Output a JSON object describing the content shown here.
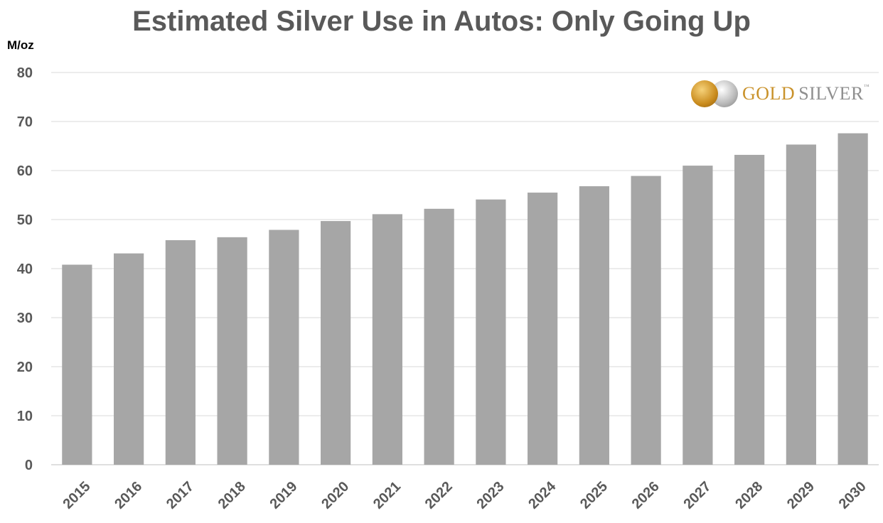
{
  "chart_data": {
    "type": "bar",
    "title": "Estimated Silver Use in Autos: Only Going Up",
    "ylabel": "M/oz",
    "xlabel": "",
    "categories": [
      "2015",
      "2016",
      "2017",
      "2018",
      "2019",
      "2020",
      "2021",
      "2022",
      "2023",
      "2024",
      "2025",
      "2026",
      "2027",
      "2028",
      "2029",
      "2030"
    ],
    "values": [
      40.8,
      43.1,
      45.8,
      46.4,
      47.9,
      49.7,
      51.1,
      52.2,
      54.1,
      55.5,
      56.8,
      58.9,
      61.0,
      63.2,
      65.3,
      67.6
    ],
    "ylim": [
      0,
      80
    ],
    "yticks": [
      "0",
      "10",
      "20",
      "30",
      "40",
      "50",
      "60",
      "70",
      "80"
    ],
    "grid": true,
    "bar_color": "#a6a6a6",
    "grid_color": "#d9d9d9"
  },
  "logo": {
    "gold_text": "GOLD",
    "silver_text": "SILVER",
    "tm": "™",
    "icon": "gold-silver-coins-icon"
  }
}
